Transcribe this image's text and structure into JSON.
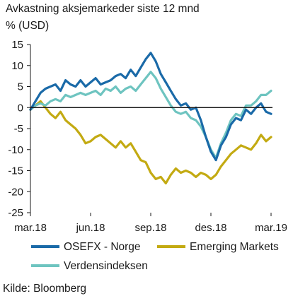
{
  "chart_data": {
    "type": "line",
    "title": "Avkastning aksjemarkeder siste 12 mnd",
    "ylabel": "% (USD)",
    "source": "Kilde: Bloomberg",
    "ylim": [
      -25,
      15
    ],
    "yticks": [
      "15",
      "10",
      "5",
      "0",
      "-5",
      "-10",
      "-15",
      "-20",
      "-25"
    ],
    "yticks_values": [
      15,
      10,
      5,
      0,
      -5,
      -10,
      -15,
      -20,
      -25
    ],
    "xlim": [
      0,
      12
    ],
    "xticks": [
      "mar.18",
      "jun.18",
      "sep.18",
      "des.18",
      "mar.19"
    ],
    "xticks_values": [
      0,
      3,
      6,
      9,
      12
    ],
    "grid": false,
    "legend_placement": "bottom",
    "series": [
      {
        "name": "OSEFX - Norge",
        "color": "#1a6aa8",
        "x": [
          0,
          0.25,
          0.5,
          0.75,
          1.0,
          1.25,
          1.5,
          1.75,
          2.0,
          2.25,
          2.5,
          2.75,
          3.0,
          3.25,
          3.5,
          3.75,
          4.0,
          4.25,
          4.5,
          4.75,
          5.0,
          5.25,
          5.5,
          5.75,
          6.0,
          6.25,
          6.5,
          6.75,
          7.0,
          7.25,
          7.5,
          7.75,
          8.0,
          8.25,
          8.5,
          8.75,
          9.0,
          9.25,
          9.5,
          9.75,
          10.0,
          10.25,
          10.5,
          10.75,
          11.0,
          11.25,
          11.5,
          11.75,
          12.0
        ],
        "values": [
          -0.5,
          1.5,
          3.5,
          4.5,
          5.0,
          5.5,
          4.0,
          6.5,
          5.5,
          5.0,
          6.5,
          5.0,
          6.0,
          7.0,
          5.5,
          6.0,
          6.5,
          7.5,
          8.0,
          7.0,
          9.0,
          7.5,
          9.5,
          11.5,
          13.0,
          11.0,
          8.0,
          6.0,
          4.0,
          2.0,
          0.5,
          1.0,
          -0.5,
          0.0,
          -3.0,
          -7.0,
          -10.5,
          -12.5,
          -9.0,
          -7.0,
          -4.0,
          -2.5,
          -3.0,
          -0.5,
          -1.5,
          0.0,
          1.0,
          -1.0,
          -1.5
        ]
      },
      {
        "name": "Emerging Markets",
        "color": "#c3aa12",
        "x": [
          0,
          0.25,
          0.5,
          0.75,
          1.0,
          1.25,
          1.5,
          1.75,
          2.0,
          2.25,
          2.5,
          2.75,
          3.0,
          3.25,
          3.5,
          3.75,
          4.0,
          4.25,
          4.5,
          4.75,
          5.0,
          5.25,
          5.5,
          5.75,
          6.0,
          6.25,
          6.5,
          6.75,
          7.0,
          7.25,
          7.5,
          7.75,
          8.0,
          8.25,
          8.5,
          8.75,
          9.0,
          9.25,
          9.5,
          9.75,
          10.0,
          10.25,
          10.5,
          10.75,
          11.0,
          11.25,
          11.5,
          11.75,
          12.0
        ],
        "values": [
          -0.5,
          0.5,
          1.5,
          0.0,
          -1.5,
          -2.5,
          -1.0,
          -3.0,
          -4.0,
          -5.0,
          -6.5,
          -8.5,
          -8.0,
          -7.0,
          -6.5,
          -7.5,
          -8.5,
          -9.5,
          -8.0,
          -9.5,
          -8.5,
          -10.5,
          -12.5,
          -13.0,
          -15.5,
          -17.0,
          -16.5,
          -18.0,
          -16.0,
          -14.5,
          -15.5,
          -15.0,
          -15.5,
          -16.5,
          -15.5,
          -16.0,
          -17.0,
          -16.0,
          -14.0,
          -12.5,
          -11.0,
          -10.0,
          -9.0,
          -9.5,
          -10.0,
          -8.5,
          -6.5,
          -8.0,
          -7.0
        ]
      },
      {
        "name": "Verdensindeksen",
        "color": "#6ec4c0",
        "x": [
          0,
          0.25,
          0.5,
          0.75,
          1.0,
          1.25,
          1.5,
          1.75,
          2.0,
          2.25,
          2.5,
          2.75,
          3.0,
          3.25,
          3.5,
          3.75,
          4.0,
          4.25,
          4.5,
          4.75,
          5.0,
          5.25,
          5.5,
          5.75,
          6.0,
          6.25,
          6.5,
          6.75,
          7.0,
          7.25,
          7.5,
          7.75,
          8.0,
          8.25,
          8.5,
          8.75,
          9.0,
          9.25,
          9.5,
          9.75,
          10.0,
          10.25,
          10.5,
          10.75,
          11.0,
          11.25,
          11.5,
          11.75,
          12.0
        ],
        "values": [
          -0.5,
          0.5,
          1.0,
          0.5,
          1.5,
          2.0,
          1.5,
          3.0,
          2.5,
          3.0,
          3.5,
          3.0,
          3.5,
          4.0,
          3.0,
          4.5,
          4.0,
          5.0,
          3.5,
          4.5,
          5.0,
          4.0,
          5.5,
          7.0,
          8.5,
          7.0,
          4.5,
          2.5,
          0.5,
          -1.0,
          -1.5,
          -1.0,
          -2.5,
          -3.0,
          -4.5,
          -7.0,
          -10.0,
          -12.0,
          -8.5,
          -6.0,
          -3.0,
          -1.5,
          -2.0,
          0.5,
          0.5,
          1.5,
          3.0,
          3.0,
          4.0
        ]
      }
    ]
  }
}
